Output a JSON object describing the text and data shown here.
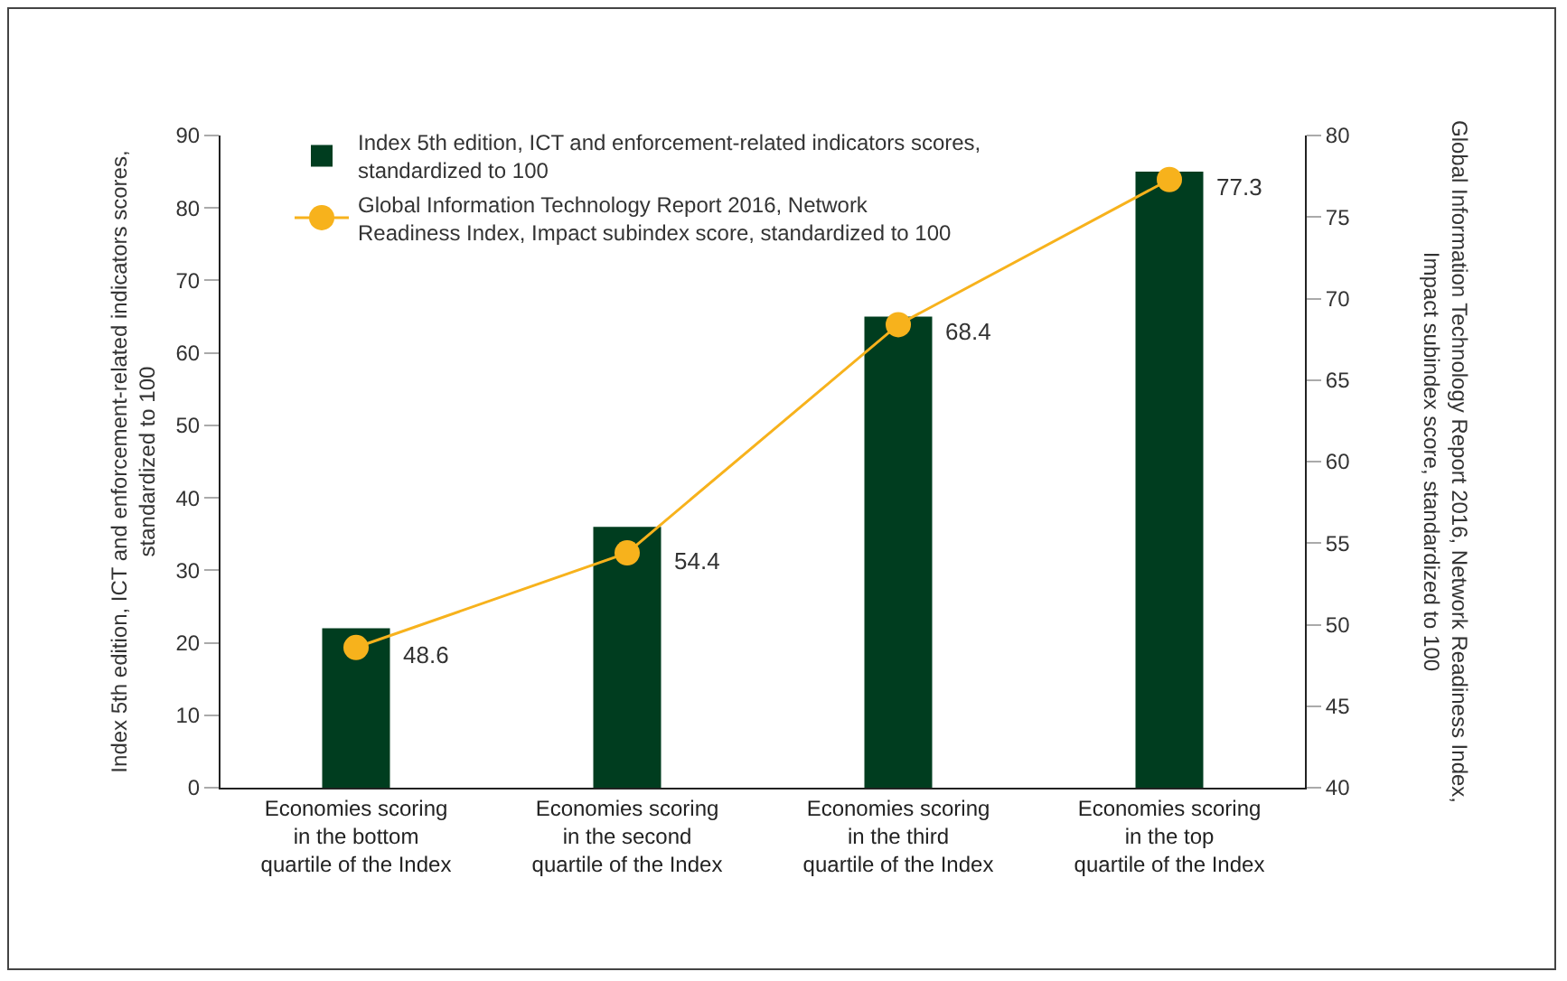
{
  "chart_data": {
    "type": "bar",
    "categories": [
      "Economies scoring\nin the bottom\nquartile of the Index",
      "Economies scoring\nin the second\nquartile of the Index",
      "Economies scoring\nin the third\nquartile of the Index",
      "Economies scoring\nin the top\nquartile of the Index"
    ],
    "ylabel": "Index 5th edition, ICT and enforcement-related indicators scores,\nstandardized to 100",
    "y2label": "Global Information Technology Report 2016, Network Readiness Index,\nImpact subindex score, standardized to 100",
    "series": [
      {
        "name": "Index 5th edition, ICT and enforcement-related indicators scores,\nstandardized to 100",
        "color": "#003d1f",
        "values": [
          22,
          36,
          65,
          85
        ]
      },
      {
        "name": "Global Information Technology Report 2016, Network\nReadiness Index, Impact subindex score, standardized to 100",
        "type": "line",
        "axis": "y2",
        "color": "#f7b21c",
        "values": [
          48.6,
          54.4,
          68.4,
          77.3
        ],
        "value_labels": [
          "48.6",
          "54.4",
          "68.4",
          "77.3"
        ]
      }
    ],
    "ylim": [
      0,
      90
    ],
    "yticks": [
      0,
      10,
      20,
      30,
      40,
      50,
      60,
      70,
      80,
      90
    ],
    "y2lim": [
      40,
      80
    ],
    "y2ticks": [
      40,
      45,
      50,
      55,
      60,
      65,
      70,
      75,
      80
    ],
    "marker": "circle",
    "line_style": "solid",
    "grid": false,
    "legend": "top left"
  }
}
